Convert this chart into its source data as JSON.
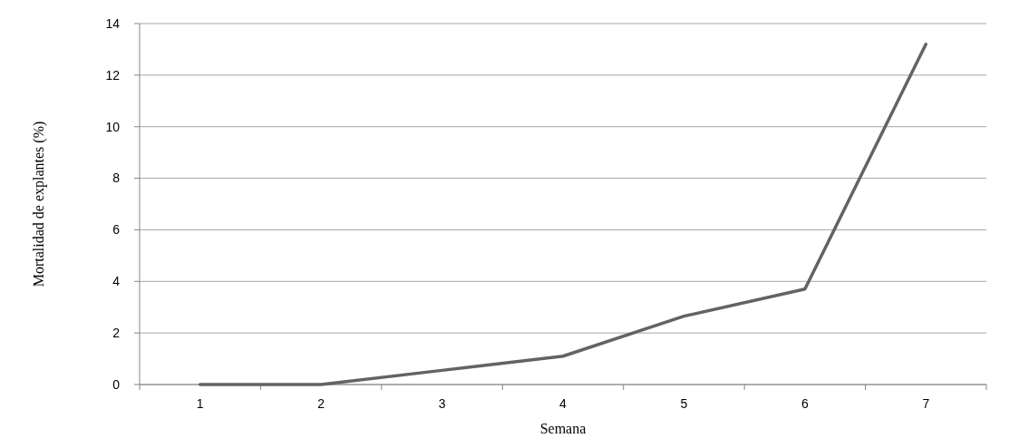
{
  "chart_data": {
    "type": "line",
    "xlabel": "Semana",
    "ylabel": "Mortalidad de explantes (%)",
    "categories": [
      "1",
      "2",
      "3",
      "4",
      "5",
      "6",
      "7"
    ],
    "series": [
      {
        "color": "#636363",
        "values": [
          0,
          0,
          0.55,
          1.1,
          2.65,
          3.7,
          13.2
        ]
      }
    ],
    "ylim": [
      0,
      14
    ],
    "yticks": [
      0,
      2,
      4,
      6,
      8,
      10,
      12,
      14
    ],
    "grid": "y",
    "marker": "none",
    "line_style": "solid"
  }
}
